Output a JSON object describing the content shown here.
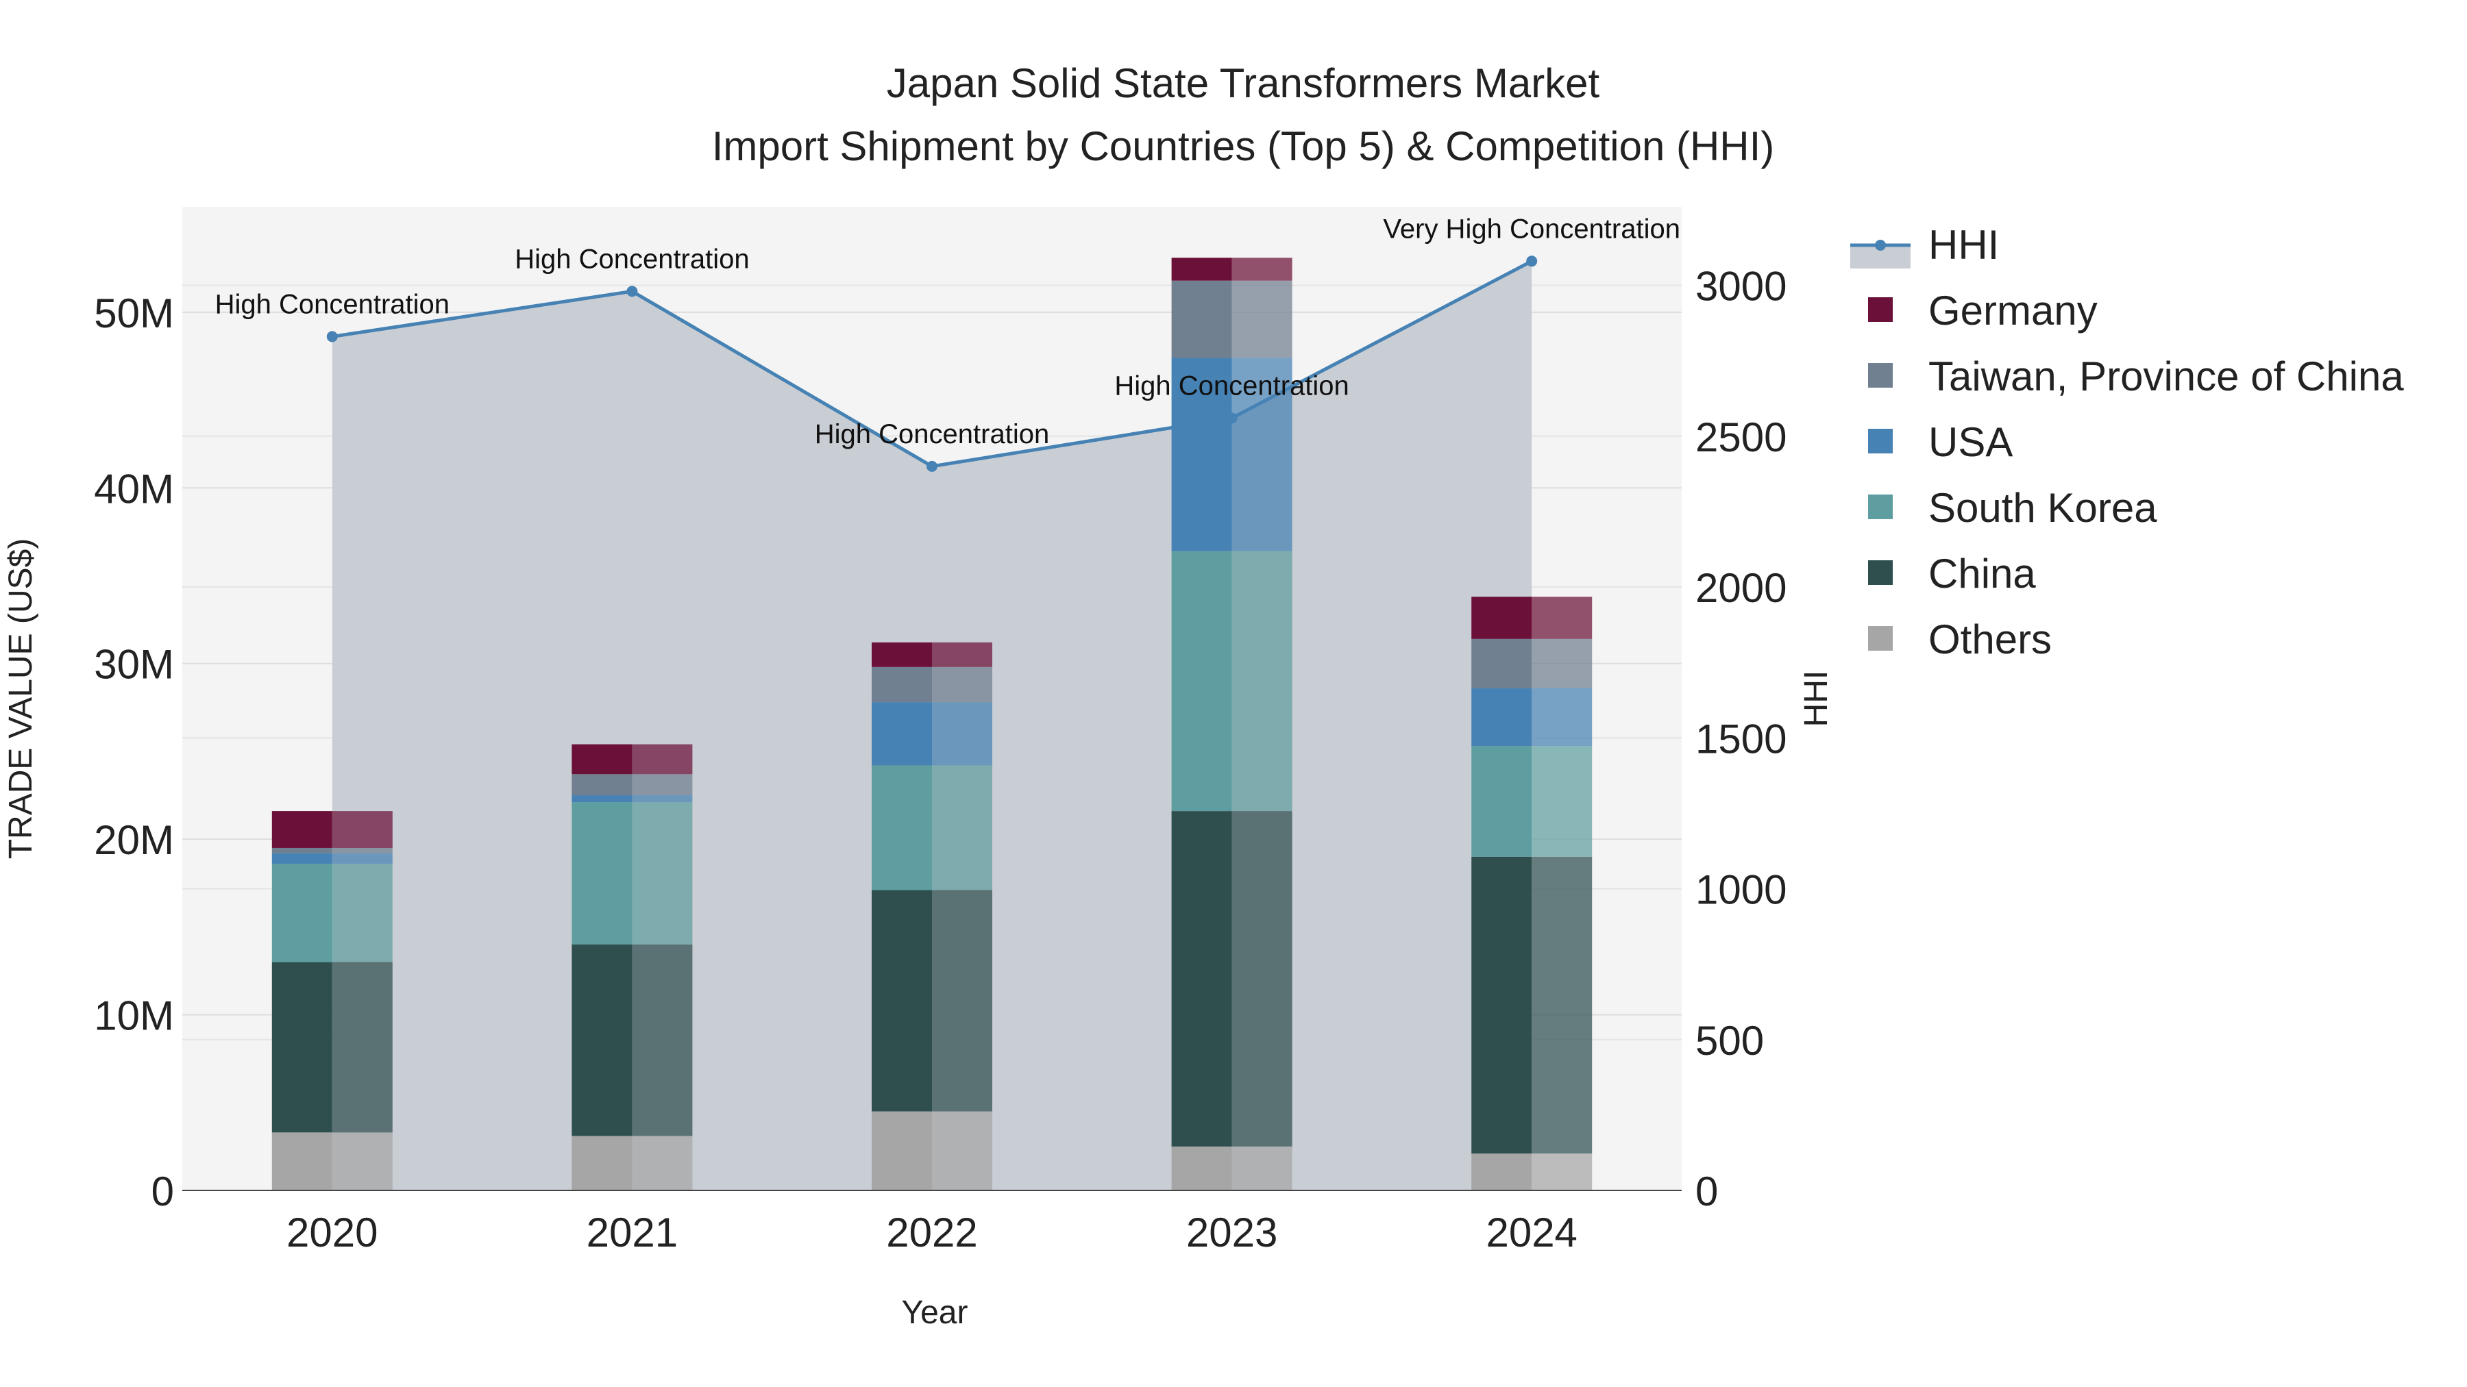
{
  "chart_data": {
    "type": "bar",
    "title": "Japan Solid State Transformers Market",
    "subtitle": "Import Shipment by Countries (Top 5) & Competition (HHI)",
    "xlabel": "Year",
    "ylabel": "TRADE VALUE (US$)",
    "y2label": "HHI",
    "categories": [
      "2020",
      "2021",
      "2022",
      "2023",
      "2024"
    ],
    "ylim": [
      0,
      56000000
    ],
    "y2lim": [
      0,
      3260
    ],
    "yticks": [
      {
        "value": 0,
        "label": "0"
      },
      {
        "value": 10000000,
        "label": "10M"
      },
      {
        "value": 20000000,
        "label": "20M"
      },
      {
        "value": 30000000,
        "label": "30M"
      },
      {
        "value": 40000000,
        "label": "40M"
      },
      {
        "value": 50000000,
        "label": "50M"
      }
    ],
    "y2ticks": [
      {
        "value": 0,
        "label": "0"
      },
      {
        "value": 500,
        "label": "500"
      },
      {
        "value": 1000,
        "label": "1000"
      },
      {
        "value": 1500,
        "label": "1500"
      },
      {
        "value": 2000,
        "label": "2000"
      },
      {
        "value": 2500,
        "label": "2500"
      },
      {
        "value": 3000,
        "label": "3000"
      }
    ],
    "series": [
      {
        "name": "Others",
        "color": "#A6A6A6",
        "values": [
          3300000,
          3100000,
          4500000,
          2500000,
          2100000
        ]
      },
      {
        "name": "China",
        "color": "#2F4F4F",
        "values": [
          9700000,
          10900000,
          12600000,
          19100000,
          16900000
        ]
      },
      {
        "name": "South Korea",
        "color": "#5F9EA0",
        "values": [
          5600000,
          8100000,
          7100000,
          14800000,
          6300000
        ]
      },
      {
        "name": "USA",
        "color": "#4682B4",
        "values": [
          600000,
          400000,
          3600000,
          11000000,
          3300000
        ]
      },
      {
        "name": "Taiwan, Province of China",
        "color": "#708090",
        "values": [
          300000,
          1200000,
          2000000,
          4400000,
          2800000
        ]
      },
      {
        "name": "Germany",
        "color": "#6B1038",
        "values": [
          2100000,
          1700000,
          1400000,
          1300000,
          2400000
        ]
      }
    ],
    "hhi": {
      "name": "HHI",
      "color": "#4682B4",
      "values": [
        2830,
        2980,
        2400,
        2560,
        3080
      ],
      "annotations": [
        "High Concentration",
        "High Concentration",
        "High Concentration",
        "High Concentration",
        "Very High Concentration"
      ]
    },
    "legend": [
      "HHI",
      "Germany",
      "Taiwan, Province of China",
      "USA",
      "South Korea",
      "China",
      "Others"
    ]
  }
}
